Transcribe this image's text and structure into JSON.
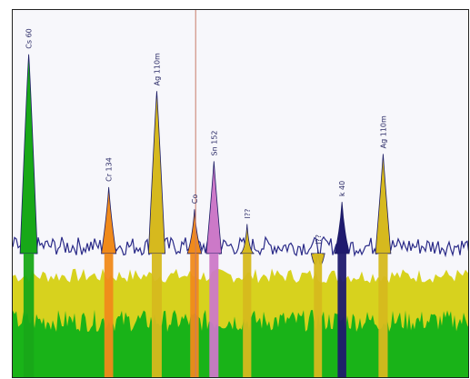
{
  "viewer": {
    "background": "#f7f7fb",
    "cursor_color": "#c87a6a"
  },
  "chart_data": {
    "type": "area",
    "x_units": "keV",
    "x_range": [
      0,
      2000
    ],
    "y_range": [
      0,
      100
    ],
    "cursor_x": 800,
    "baseline_levels": {
      "green_fill": 14,
      "yellow_fill": 28,
      "blue_spectrum": 36
    },
    "peaks": [
      {
        "label": "Cs 60",
        "x": 70,
        "height": 88,
        "color": "#18a818"
      },
      {
        "label": "Cr 134",
        "x": 420,
        "height": 52,
        "color": "#f08a1a"
      },
      {
        "label": "Ag 110m",
        "x": 630,
        "height": 78,
        "color": "#d6b91e"
      },
      {
        "label": "Co",
        "x": 795,
        "height": 46,
        "color": "#f08a1a"
      },
      {
        "label": "Sn 152",
        "x": 880,
        "height": 59,
        "color": "#cc79c8"
      },
      {
        "label": "I??",
        "x": 1025,
        "height": 42,
        "color": "#d6b91e"
      },
      {
        "label": "I??",
        "x": 1335,
        "height": 35,
        "color": "#d6b91e"
      },
      {
        "label": "k 40",
        "x": 1440,
        "height": 48,
        "color": "#1f1a6e"
      },
      {
        "label": "Ag 110m",
        "x": 1620,
        "height": 61,
        "color": "#d6b91e"
      }
    ]
  }
}
